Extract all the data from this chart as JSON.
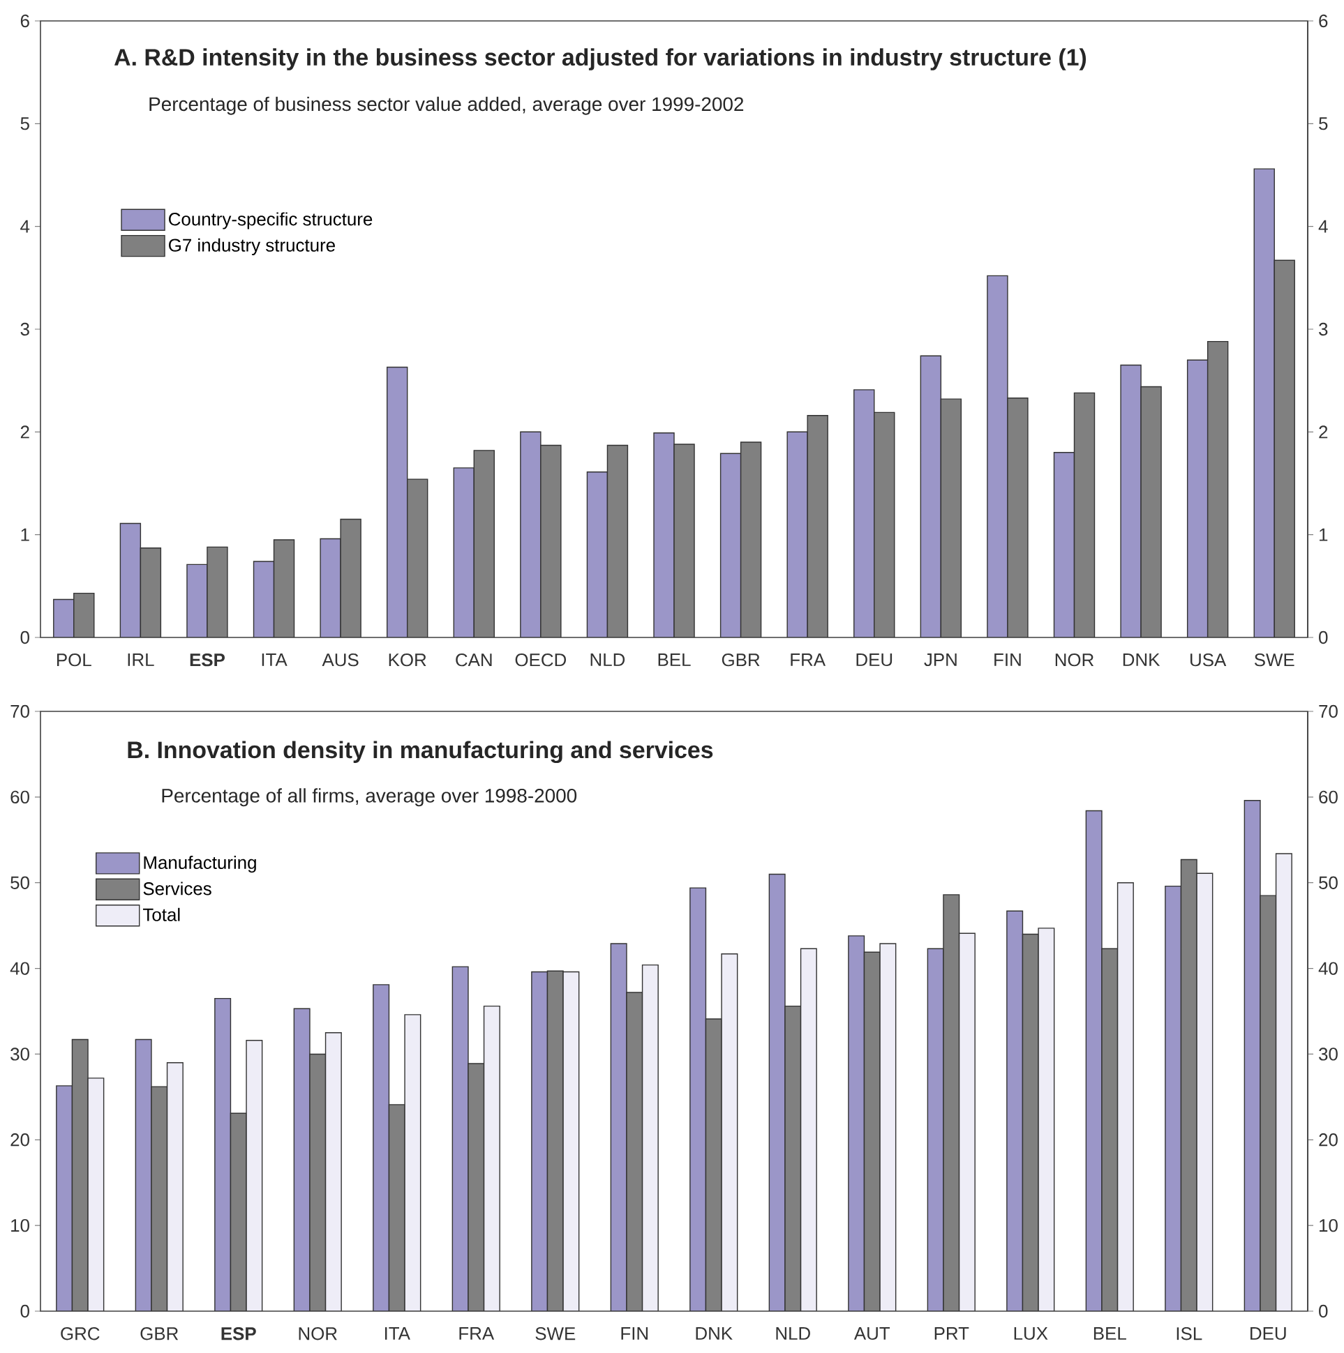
{
  "chart_data": [
    {
      "type": "bar",
      "title": "A. R&D intensity in the business sector adjusted for variations in industry structure (1)",
      "subtitle": "Percentage of business sector value added, average over 1999-2002",
      "categories": [
        "POL",
        "IRL",
        "**ESP**",
        "ITA",
        "AUS",
        "KOR",
        "CAN",
        "OECD",
        "NLD",
        "BEL",
        "GBR",
        "FRA",
        "DEU",
        "JPN",
        "FIN",
        "NOR",
        "DNK",
        "USA",
        "SWE"
      ],
      "series": [
        {
          "name": "Country-specific structure",
          "color": "#9b96c8",
          "values": [
            0.37,
            1.11,
            0.71,
            0.74,
            0.96,
            2.63,
            1.65,
            2.0,
            1.61,
            1.99,
            1.79,
            2.0,
            2.41,
            2.74,
            3.52,
            1.8,
            2.65,
            2.7,
            4.56
          ]
        },
        {
          "name": "G7 industry structure",
          "color": "#808080",
          "values": [
            0.43,
            0.87,
            0.88,
            0.95,
            1.15,
            1.54,
            1.82,
            1.87,
            1.87,
            1.88,
            1.9,
            2.16,
            2.19,
            2.32,
            2.33,
            2.38,
            2.44,
            2.88,
            3.67
          ]
        }
      ],
      "ylim": [
        0,
        6
      ],
      "yticks": [
        0,
        1,
        2,
        3,
        4,
        5,
        6
      ],
      "y2lim": [
        0,
        6
      ],
      "y2ticks": [
        0,
        1,
        2,
        3,
        4,
        5,
        6
      ],
      "legend": "top left"
    },
    {
      "type": "bar",
      "title": "B. Innovation density in manufacturing and services",
      "subtitle": "Percentage of all firms, average over 1998-2000",
      "categories": [
        "GRC",
        "GBR",
        "**ESP**",
        "NOR",
        "ITA",
        "FRA",
        "SWE",
        "FIN",
        "DNK",
        "NLD",
        "AUT",
        "PRT",
        "LUX",
        "BEL",
        "ISL",
        "DEU"
      ],
      "series": [
        {
          "name": "Manufacturing",
          "color": "#9b96c8",
          "values": [
            26.3,
            31.7,
            36.5,
            35.3,
            38.1,
            40.2,
            39.6,
            42.9,
            49.4,
            51.0,
            43.8,
            42.3,
            46.7,
            58.4,
            49.6,
            59.6
          ]
        },
        {
          "name": "Services",
          "color": "#808080",
          "values": [
            31.7,
            26.2,
            23.1,
            30.0,
            24.1,
            28.9,
            39.7,
            37.2,
            34.1,
            35.6,
            41.9,
            48.6,
            44.0,
            42.3,
            52.7,
            48.5
          ]
        },
        {
          "name": "Total",
          "color": "#eeedf7",
          "values": [
            27.2,
            29.0,
            31.6,
            32.5,
            34.6,
            35.6,
            39.6,
            40.4,
            41.7,
            42.3,
            42.9,
            44.1,
            44.7,
            50.0,
            51.1,
            53.4
          ]
        }
      ],
      "ylim": [
        0,
        70
      ],
      "yticks": [
        0,
        10,
        20,
        30,
        40,
        50,
        60,
        70
      ],
      "y2lim": [
        0,
        70
      ],
      "y2ticks": [
        0,
        10,
        20,
        30,
        40,
        50,
        60,
        70
      ],
      "legend": "top left"
    }
  ]
}
